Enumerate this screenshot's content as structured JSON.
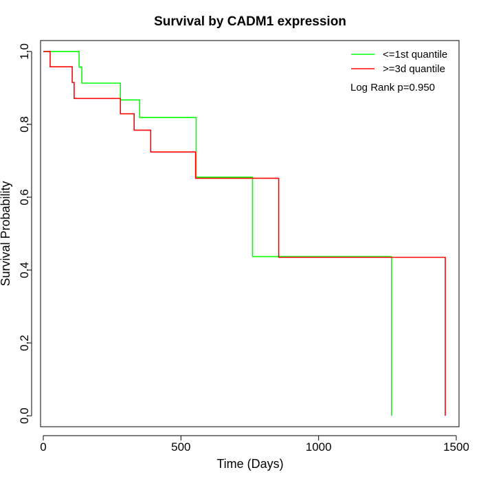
{
  "chart_data": {
    "type": "line",
    "step": true,
    "title": "Survival by CADM1 expression",
    "xlabel": "Time (Days)",
    "ylabel": "Survival Probability",
    "xlim": [
      -10,
      1510
    ],
    "ylim": [
      -0.03,
      1.03
    ],
    "xticks": [
      0,
      500,
      1000,
      1500
    ],
    "xtick_labels": [
      "0",
      "500",
      "1000",
      "1500"
    ],
    "yticks": [
      0,
      0.2,
      0.4,
      0.6,
      0.8,
      1.0
    ],
    "ytick_labels": [
      "0.0",
      "0.2",
      "0.4",
      "0.6",
      "0.8",
      "1.0"
    ],
    "grid": false,
    "legend_position": "top-right",
    "annotation": "Log Rank p=0.950",
    "series": [
      {
        "name": "<=1st quantile",
        "color": "#00ff00",
        "x": [
          0,
          130,
          130,
          140,
          140,
          280,
          280,
          350,
          350,
          555,
          555,
          760,
          760,
          1265,
          1265
        ],
        "y": [
          1.0,
          1.0,
          0.957,
          0.957,
          0.913,
          0.913,
          0.867,
          0.867,
          0.819,
          0.819,
          0.655,
          0.655,
          0.437,
          0.437,
          0.0
        ]
      },
      {
        "name": ">=3d quantile",
        "color": "#ff0000",
        "x": [
          0,
          25,
          25,
          105,
          105,
          112,
          112,
          280,
          280,
          330,
          330,
          390,
          390,
          553,
          553,
          855,
          855,
          1460,
          1460
        ],
        "y": [
          1.0,
          1.0,
          0.958,
          0.958,
          0.915,
          0.915,
          0.871,
          0.871,
          0.829,
          0.829,
          0.784,
          0.784,
          0.724,
          0.724,
          0.652,
          0.652,
          0.435,
          0.435,
          0.0
        ]
      }
    ]
  }
}
